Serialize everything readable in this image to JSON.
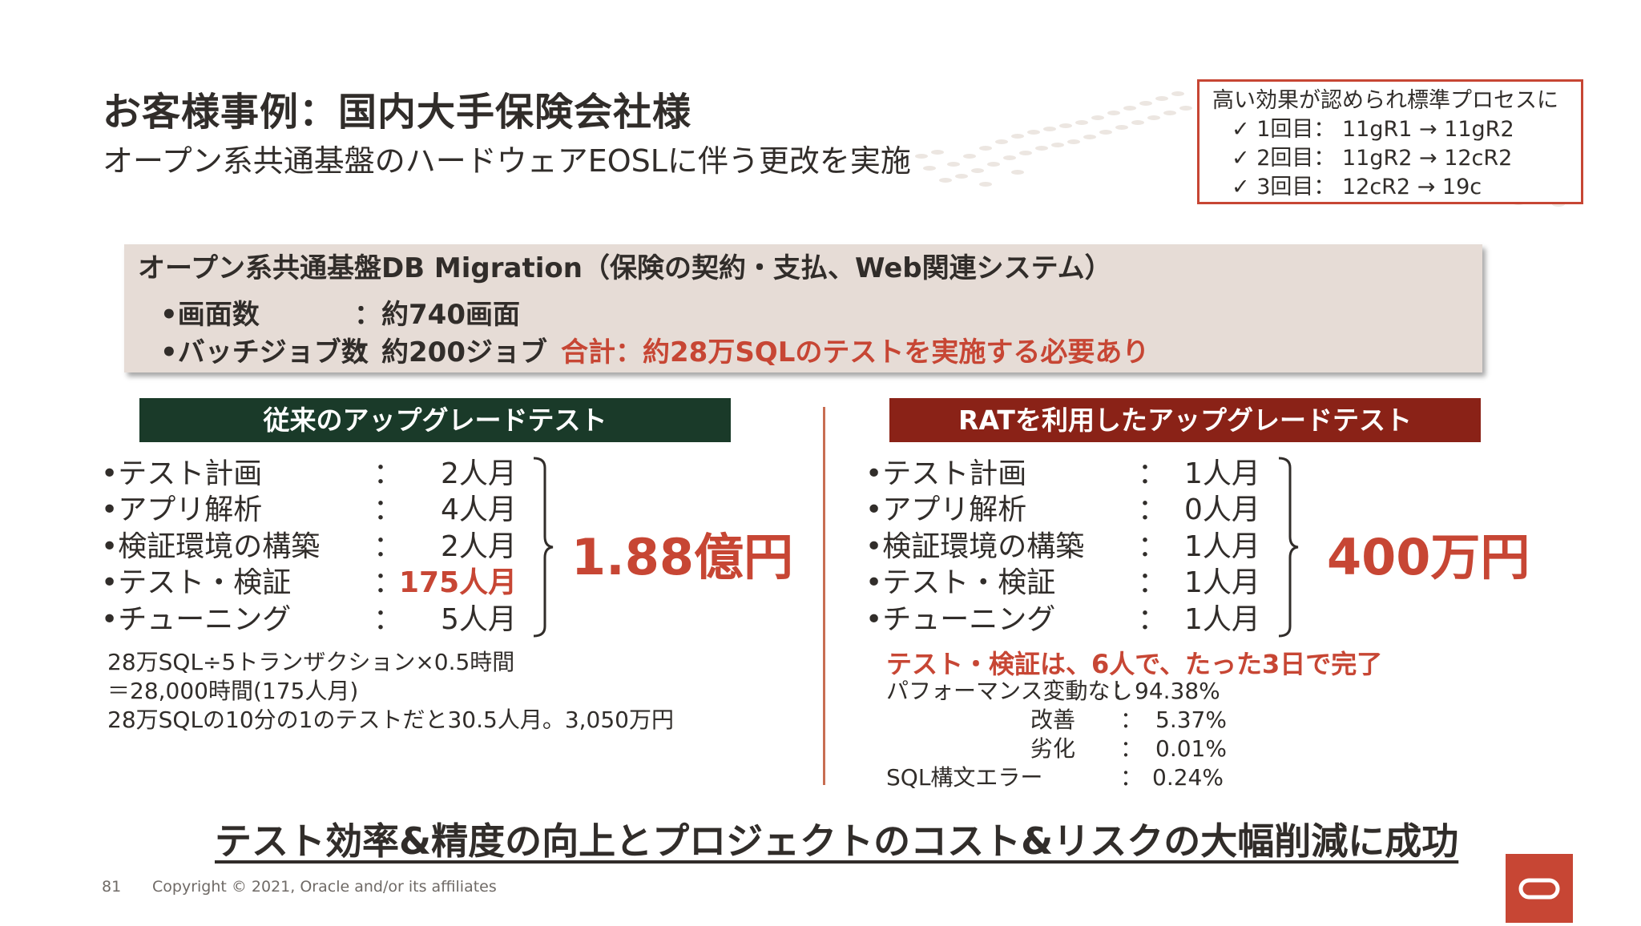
{
  "slide": {
    "title": "お客様事例：国内大手保険会社様",
    "subtitle": "オープン系共通基盤のハードウェアEOSLに伴う更改を実施"
  },
  "callout": {
    "heading": "高い効果が認められ標準プロセスに",
    "items": [
      "✓ 1回目： 11gR1 → 11gR2",
      "✓ 2回目： 11gR2 → 12cR2",
      "✓ 3回目： 12cR2 → 19c"
    ]
  },
  "migration": {
    "title": "オープン系共通基盤DB Migration（保険の契約・支払、Web関連システム）",
    "screens_label": "•画面数",
    "screens_value": "：約740画面",
    "batch_label": "•バッチジョブ数",
    "batch_value": "：約200ジョブ",
    "total": "合計：約28万SQLのテストを実施する必要あり"
  },
  "left": {
    "header": "従来のアップグレードテスト",
    "rows": [
      {
        "label": "•テスト計画",
        "colon": "：",
        "value": "2人月"
      },
      {
        "label": "•アプリ解析",
        "colon": "：",
        "value": "4人月"
      },
      {
        "label": "•検証環境の構築",
        "colon": "：",
        "value": "2人月"
      },
      {
        "label": "•テスト・検証",
        "colon": "：",
        "value": "175人月"
      },
      {
        "label": "•チューニング",
        "colon": "：",
        "value": "5人月"
      }
    ],
    "cost": "1.88億円",
    "notes": [
      "28万SQL÷5トランザクション×0.5時間",
      "＝28,000時間(175人月)",
      "28万SQLの10分の1のテストだと30.5人月。3,050万円"
    ]
  },
  "right": {
    "header": "RATを利用したアップグレードテスト",
    "rows": [
      {
        "label": "•テスト計画",
        "colon": "：",
        "value": "1人月"
      },
      {
        "label": "•アプリ解析",
        "colon": "：",
        "value": "0人月"
      },
      {
        "label": "•検証環境の構築",
        "colon": "：",
        "value": "1人月"
      },
      {
        "label": "•テスト・検証",
        "colon": "：",
        "value": "1人月"
      },
      {
        "label": "•チューニング",
        "colon": "：",
        "value": "1人月"
      }
    ],
    "cost": "400万円",
    "note_title": "テスト・検証は、6人で、たった3日で完了",
    "stats": [
      {
        "label": "パフォーマンス変動なし",
        "colon": "：",
        "value": "94.38%"
      },
      {
        "label": "改善",
        "colon": "：",
        "value": "5.37%"
      },
      {
        "label": "劣化",
        "colon": "：",
        "value": "0.01%"
      },
      {
        "label": "SQL構文エラー",
        "colon": "：",
        "value": "0.24%"
      }
    ]
  },
  "conclusion": "テスト効率&精度の向上とプロジェクトのコスト&リスクの大幅削減に成功",
  "footer": {
    "page": "81",
    "copyright": "Copyright © 2021, Oracle and/or its affiliates"
  },
  "colors": {
    "accent_red": "#c74634",
    "left_header": "#1a3a29",
    "right_header": "#8a2217",
    "migration_box": "#e6dcd6"
  },
  "icons": [
    "oracle-logo-icon",
    "checkmark-icon",
    "arrow-right-icon",
    "brace-icon"
  ]
}
